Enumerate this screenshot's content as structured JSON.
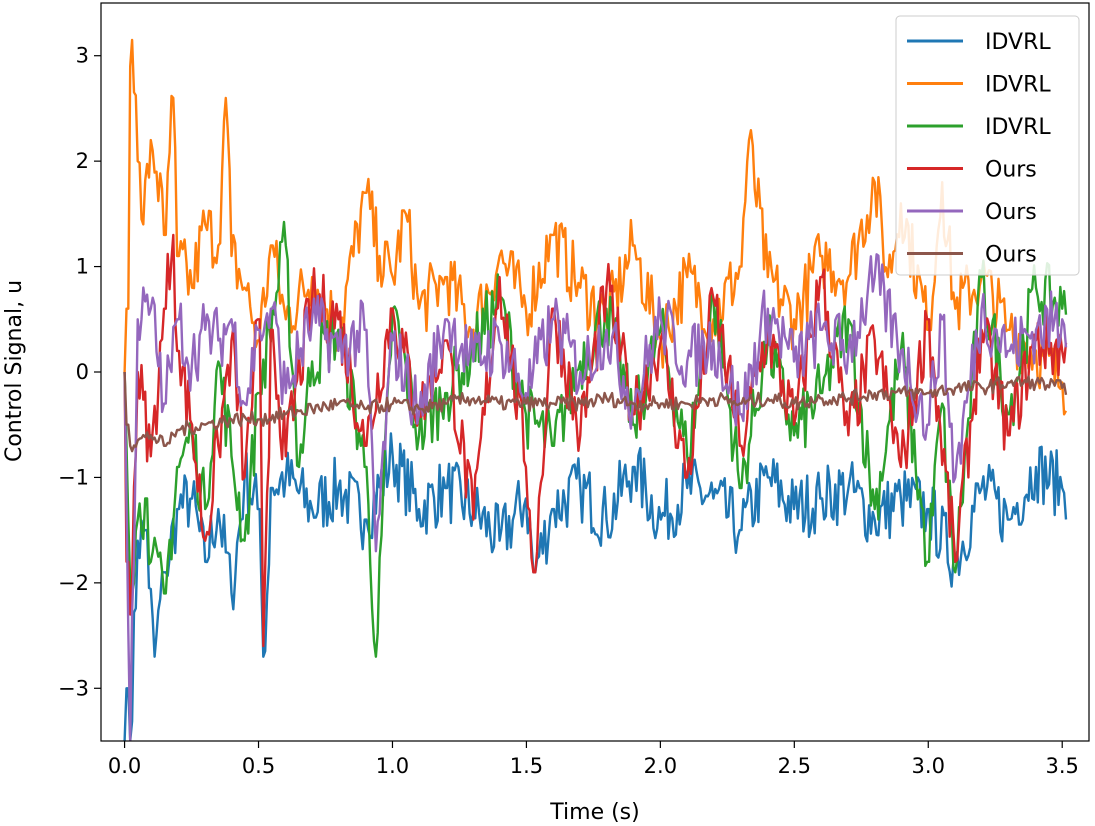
{
  "chart_data": {
    "type": "line",
    "title": "",
    "xlabel": "Time (s)",
    "ylabel": "Control Signal, u",
    "xlim": [
      -0.088,
      3.6
    ],
    "ylim": [
      -3.5,
      3.5
    ],
    "x_range": [
      0.0,
      3.52
    ],
    "x_ticks": [
      0.0,
      0.5,
      1.0,
      1.5,
      2.0,
      2.5,
      3.0,
      3.5
    ],
    "x_tick_labels": [
      "0.0",
      "0.5",
      "1.0",
      "1.5",
      "2.0",
      "2.5",
      "3.0",
      "3.5"
    ],
    "y_ticks": [
      -3,
      -2,
      -1,
      0,
      1,
      2,
      3
    ],
    "y_tick_labels": [
      "−3",
      "−2",
      "−1",
      "0",
      "1",
      "2",
      "3"
    ],
    "grid": false,
    "legend_position": "top-right",
    "series": [
      {
        "name": "IDVRL",
        "color": "#1f77b4",
        "x": [
          0.0,
          0.01,
          0.02,
          0.05,
          0.08,
          0.11,
          0.15,
          0.2,
          0.25,
          0.3,
          0.35,
          0.4,
          0.45,
          0.5,
          0.52,
          0.55,
          0.6,
          0.7,
          0.8,
          0.9,
          1.0,
          1.1,
          1.2,
          1.3,
          1.4,
          1.5,
          1.53,
          1.6,
          1.7,
          1.8,
          1.9,
          2.0,
          2.1,
          2.2,
          2.3,
          2.4,
          2.5,
          2.6,
          2.7,
          2.8,
          2.9,
          3.0,
          3.1,
          3.2,
          3.3,
          3.4,
          3.5
        ],
        "y": [
          -3.5,
          -3.0,
          -3.5,
          -1.6,
          -1.5,
          -2.7,
          -1.9,
          -1.3,
          -1.2,
          -1.8,
          -1.3,
          -2.1,
          -1.0,
          -1.3,
          -2.7,
          -1.1,
          -1.0,
          -1.3,
          -1.1,
          -1.4,
          -0.8,
          -1.3,
          -1.1,
          -1.3,
          -1.6,
          -1.2,
          -1.9,
          -1.3,
          -1.1,
          -1.4,
          -0.9,
          -1.4,
          -1.1,
          -1.2,
          -1.5,
          -1.0,
          -1.3,
          -1.2,
          -1.1,
          -1.4,
          -1.2,
          -1.3,
          -1.8,
          -1.1,
          -1.4,
          -0.9,
          -1.1
        ]
      },
      {
        "name": "IDVRL",
        "color": "#ff7f0e",
        "x": [
          0.0,
          0.01,
          0.02,
          0.03,
          0.05,
          0.07,
          0.1,
          0.12,
          0.15,
          0.18,
          0.2,
          0.25,
          0.3,
          0.35,
          0.38,
          0.4,
          0.45,
          0.5,
          0.55,
          0.6,
          0.7,
          0.8,
          0.9,
          0.95,
          1.0,
          1.05,
          1.1,
          1.2,
          1.3,
          1.4,
          1.5,
          1.6,
          1.7,
          1.8,
          1.9,
          2.0,
          2.1,
          2.2,
          2.3,
          2.33,
          2.4,
          2.5,
          2.6,
          2.7,
          2.8,
          2.85,
          2.9,
          3.0,
          3.05,
          3.1,
          3.2,
          3.3,
          3.4,
          3.5
        ],
        "y": [
          0.0,
          0.6,
          2.9,
          3.15,
          2.0,
          1.4,
          2.2,
          1.9,
          1.3,
          2.6,
          1.1,
          0.8,
          1.4,
          1.2,
          2.6,
          1.1,
          0.8,
          0.3,
          1.2,
          0.5,
          0.9,
          0.4,
          1.7,
          1.1,
          0.9,
          1.5,
          0.6,
          0.9,
          0.4,
          1.1,
          0.6,
          1.3,
          0.8,
          0.5,
          1.2,
          0.3,
          0.9,
          0.5,
          1.0,
          2.2,
          0.9,
          0.5,
          1.1,
          0.9,
          1.8,
          0.9,
          1.6,
          0.4,
          1.8,
          0.6,
          0.9,
          0.4,
          0.2,
          -0.1
        ]
      },
      {
        "name": "IDVRL",
        "color": "#2ca02c",
        "x": [
          0.0,
          0.02,
          0.05,
          0.08,
          0.1,
          0.15,
          0.2,
          0.25,
          0.3,
          0.35,
          0.4,
          0.45,
          0.5,
          0.6,
          0.65,
          0.7,
          0.8,
          0.9,
          0.94,
          1.0,
          1.1,
          1.2,
          1.3,
          1.4,
          1.5,
          1.6,
          1.7,
          1.8,
          1.9,
          2.0,
          2.1,
          2.2,
          2.3,
          2.4,
          2.5,
          2.6,
          2.7,
          2.8,
          2.9,
          3.0,
          3.05,
          3.1,
          3.2,
          3.3,
          3.4,
          3.5
        ],
        "y": [
          0.0,
          -2.0,
          -1.4,
          -1.2,
          -1.8,
          -2.1,
          -0.9,
          -0.6,
          -1.3,
          0.1,
          -0.8,
          -1.6,
          -0.2,
          1.2,
          -0.9,
          0.1,
          0.4,
          -0.9,
          -2.7,
          0.6,
          -0.6,
          -0.2,
          0.2,
          0.7,
          -0.4,
          -0.7,
          0.1,
          0.6,
          -0.5,
          0.4,
          -0.8,
          0.7,
          -1.1,
          0.3,
          -0.6,
          -0.2,
          0.5,
          -1.3,
          0.2,
          -1.8,
          -0.3,
          -1.9,
          0.9,
          -0.4,
          0.8,
          0.6
        ]
      },
      {
        "name": "Ours",
        "color": "#d62728",
        "x": [
          0.0,
          0.01,
          0.02,
          0.05,
          0.1,
          0.15,
          0.18,
          0.2,
          0.25,
          0.3,
          0.35,
          0.4,
          0.45,
          0.5,
          0.52,
          0.55,
          0.6,
          0.7,
          0.8,
          0.9,
          1.0,
          1.1,
          1.2,
          1.3,
          1.4,
          1.5,
          1.53,
          1.6,
          1.7,
          1.8,
          1.9,
          2.0,
          2.1,
          2.2,
          2.3,
          2.4,
          2.5,
          2.6,
          2.7,
          2.8,
          2.9,
          3.0,
          3.1,
          3.2,
          3.3,
          3.4,
          3.5
        ],
        "y": [
          0.0,
          -1.8,
          -2.3,
          0.0,
          -0.8,
          0.6,
          1.3,
          0.2,
          -0.5,
          -1.6,
          -0.7,
          0.3,
          -1.0,
          0.5,
          -2.6,
          0.4,
          -0.8,
          0.7,
          0.5,
          -0.7,
          0.6,
          -0.4,
          0.3,
          -1.4,
          0.9,
          -0.9,
          -1.9,
          0.6,
          -0.6,
          0.8,
          -0.4,
          0.3,
          -1.0,
          0.7,
          -0.7,
          0.4,
          -0.5,
          0.9,
          -0.6,
          0.3,
          -0.9,
          0.5,
          -1.8,
          0.4,
          -0.6,
          0.3,
          0.2
        ]
      },
      {
        "name": "Ours",
        "color": "#9467bd",
        "x": [
          0.0,
          0.02,
          0.05,
          0.1,
          0.15,
          0.2,
          0.25,
          0.3,
          0.35,
          0.4,
          0.45,
          0.5,
          0.55,
          0.6,
          0.7,
          0.8,
          0.9,
          0.94,
          1.0,
          1.1,
          1.2,
          1.3,
          1.4,
          1.5,
          1.6,
          1.7,
          1.8,
          1.9,
          2.0,
          2.1,
          2.2,
          2.3,
          2.4,
          2.5,
          2.6,
          2.7,
          2.8,
          2.9,
          3.0,
          3.05,
          3.1,
          3.2,
          3.3,
          3.4,
          3.5
        ],
        "y": [
          0.0,
          -3.5,
          0.5,
          0.6,
          -0.3,
          0.5,
          0.1,
          0.4,
          0.3,
          0.5,
          -0.3,
          0.4,
          0.6,
          -0.2,
          0.5,
          0.2,
          0.4,
          -1.7,
          0.3,
          -0.4,
          0.5,
          0.1,
          0.3,
          -0.2,
          0.5,
          0.0,
          0.4,
          -0.3,
          0.5,
          0.1,
          0.3,
          -0.4,
          0.6,
          0.1,
          0.4,
          0.2,
          0.9,
          0.2,
          -0.5,
          0.5,
          -1.0,
          0.6,
          0.2,
          0.4,
          0.5
        ]
      },
      {
        "name": "Ours",
        "color": "#8c564b",
        "x": [
          0.0,
          0.01,
          0.02,
          0.05,
          0.1,
          0.15,
          0.2,
          0.3,
          0.4,
          0.5,
          0.6,
          0.7,
          0.8,
          0.9,
          1.0,
          1.1,
          1.2,
          1.3,
          1.4,
          1.5,
          1.6,
          1.7,
          1.8,
          1.9,
          2.0,
          2.1,
          2.2,
          2.3,
          2.4,
          2.5,
          2.6,
          2.7,
          2.8,
          2.9,
          3.0,
          3.1,
          3.2,
          3.3,
          3.4,
          3.5
        ],
        "y": [
          0.0,
          -0.5,
          -0.7,
          -0.65,
          -0.6,
          -0.7,
          -0.55,
          -0.5,
          -0.45,
          -0.45,
          -0.4,
          -0.35,
          -0.3,
          -0.35,
          -0.3,
          -0.35,
          -0.3,
          -0.25,
          -0.3,
          -0.3,
          -0.3,
          -0.3,
          -0.25,
          -0.3,
          -0.3,
          -0.3,
          -0.25,
          -0.3,
          -0.25,
          -0.3,
          -0.25,
          -0.25,
          -0.2,
          -0.2,
          -0.2,
          -0.15,
          -0.15,
          -0.1,
          -0.1,
          -0.15
        ]
      }
    ]
  }
}
